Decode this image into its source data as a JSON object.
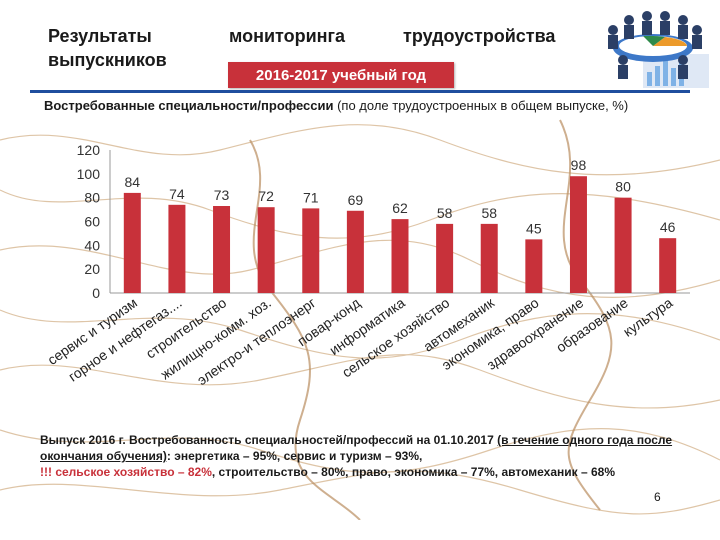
{
  "header": {
    "title_words": [
      "Результаты",
      "мониторинга",
      "трудоустройства",
      "выпускников"
    ],
    "year_badge": "2016-2017 учебный год"
  },
  "subtitle": {
    "bold": "Востребованные специальности/профессии",
    "rest": " (по доле трудоустроенных в общем выпуске, %)"
  },
  "chart_data": {
    "type": "bar",
    "categories": [
      "сервис и туризм",
      "горное и нефтегаз....",
      "строительство",
      "жилищно-комм. хоз.",
      "электро-и теплоэнерг",
      "повар-конд",
      "информатика",
      "сельское хозяйство",
      "автомеханик",
      "экономика, право",
      "здравоохранение",
      "образование",
      "культура"
    ],
    "values": [
      84,
      74,
      73,
      72,
      71,
      69,
      62,
      58,
      58,
      45,
      98,
      80,
      46
    ],
    "yticks": [
      0,
      20,
      40,
      60,
      80,
      100,
      120
    ],
    "ylim": [
      0,
      120
    ],
    "bar_color": "#c8313a",
    "grid": false
  },
  "footer": {
    "lead": "Выпуск 2016 г. Востребованность специальностей/профессий на 01.10.2017 ",
    "underlined": "(в течение одного года после окончания обучения)",
    "tail1": ": энергетика – 95%, сервис и туризм – 93%,",
    "red": "!!! сельское хозяйство – 82%",
    "tail2": ", строительство – 80%, право, экономика – 77%, автомеханик – 68%"
  },
  "page_number": "6",
  "colors": {
    "accent_red": "#c8313a",
    "line_blue": "#1f4e9e",
    "map_brown": "#c9a27a"
  }
}
